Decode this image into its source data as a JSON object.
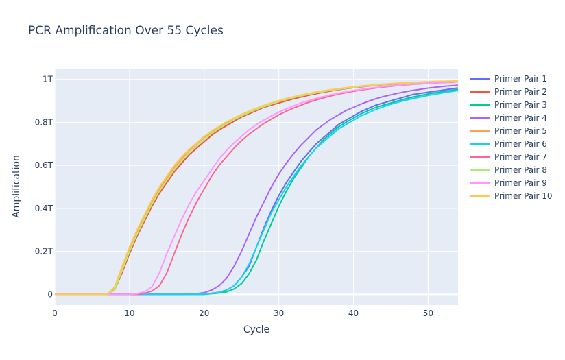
{
  "chart_data": {
    "type": "line",
    "title": "PCR Amplification Over 55 Cycles",
    "xlabel": "Cycle",
    "ylabel": "Amplification",
    "xlim": [
      0,
      54
    ],
    "ylim": [
      -0.05,
      1.05
    ],
    "y_unit": "trillions",
    "x_ticks": [
      0,
      10,
      20,
      30,
      40,
      50
    ],
    "x_tick_labels": [
      "0",
      "10",
      "20",
      "30",
      "40",
      "50"
    ],
    "y_ticks": [
      0,
      0.2,
      0.4,
      0.6,
      0.8,
      1.0
    ],
    "y_tick_labels": [
      "0",
      "0.2T",
      "0.4T",
      "0.6T",
      "0.8T",
      "1T"
    ],
    "grid": true,
    "legend_position": "right",
    "x": [
      0,
      1,
      2,
      3,
      4,
      5,
      6,
      7,
      8,
      9,
      10,
      11,
      12,
      13,
      14,
      15,
      16,
      17,
      18,
      19,
      20,
      21,
      22,
      23,
      24,
      25,
      26,
      27,
      28,
      29,
      30,
      31,
      32,
      33,
      34,
      35,
      36,
      37,
      38,
      39,
      40,
      41,
      42,
      43,
      44,
      45,
      46,
      47,
      48,
      49,
      50,
      51,
      52,
      53,
      54
    ],
    "series": [
      {
        "name": "Primer Pair 1",
        "color": "#636efa",
        "values": [
          0,
          0,
          0,
          0,
          0,
          0,
          0,
          0,
          0,
          0,
          0,
          0,
          0,
          0,
          0,
          0,
          0,
          0,
          0,
          0,
          0,
          0.005,
          0.01,
          0.02,
          0.04,
          0.08,
          0.13,
          0.22,
          0.31,
          0.39,
          0.46,
          0.52,
          0.57,
          0.62,
          0.66,
          0.7,
          0.73,
          0.76,
          0.79,
          0.81,
          0.83,
          0.85,
          0.865,
          0.88,
          0.89,
          0.9,
          0.91,
          0.92,
          0.93,
          0.935,
          0.94,
          0.945,
          0.95,
          0.955,
          0.96
        ]
      },
      {
        "name": "Primer Pair 2",
        "color": "#ef553b",
        "values": [
          0,
          0,
          0,
          0,
          0,
          0,
          0,
          0,
          0.02,
          0.1,
          0.19,
          0.27,
          0.34,
          0.41,
          0.47,
          0.52,
          0.57,
          0.61,
          0.65,
          0.68,
          0.71,
          0.74,
          0.765,
          0.785,
          0.805,
          0.825,
          0.84,
          0.855,
          0.87,
          0.88,
          0.89,
          0.9,
          0.91,
          0.918,
          0.926,
          0.933,
          0.94,
          0.946,
          0.952,
          0.957,
          0.961,
          0.965,
          0.969,
          0.972,
          0.975,
          0.977,
          0.979,
          0.981,
          0.983,
          0.985,
          0.986,
          0.987,
          0.988,
          0.989,
          0.99
        ]
      },
      {
        "name": "Primer Pair 3",
        "color": "#00cc96",
        "values": [
          0,
          0,
          0,
          0,
          0,
          0,
          0,
          0,
          0,
          0,
          0,
          0,
          0,
          0,
          0,
          0,
          0,
          0,
          0,
          0,
          0,
          0.003,
          0.006,
          0.012,
          0.025,
          0.05,
          0.095,
          0.16,
          0.25,
          0.33,
          0.41,
          0.48,
          0.54,
          0.59,
          0.64,
          0.68,
          0.72,
          0.75,
          0.78,
          0.8,
          0.82,
          0.84,
          0.855,
          0.87,
          0.88,
          0.89,
          0.9,
          0.91,
          0.918,
          0.925,
          0.932,
          0.938,
          0.943,
          0.948,
          0.953
        ]
      },
      {
        "name": "Primer Pair 4",
        "color": "#ab63fa",
        "values": [
          0,
          0,
          0,
          0,
          0,
          0,
          0,
          0,
          0,
          0,
          0,
          0,
          0,
          0,
          0,
          0,
          0,
          0,
          0,
          0.003,
          0.008,
          0.02,
          0.04,
          0.075,
          0.13,
          0.2,
          0.28,
          0.36,
          0.43,
          0.5,
          0.56,
          0.61,
          0.655,
          0.695,
          0.73,
          0.765,
          0.79,
          0.815,
          0.835,
          0.855,
          0.87,
          0.885,
          0.898,
          0.91,
          0.92,
          0.928,
          0.936,
          0.943,
          0.949,
          0.954,
          0.959,
          0.963,
          0.967,
          0.97,
          0.973
        ]
      },
      {
        "name": "Primer Pair 5",
        "color": "#ffa15a",
        "values": [
          0,
          0,
          0,
          0,
          0,
          0,
          0,
          0,
          0.03,
          0.12,
          0.21,
          0.29,
          0.36,
          0.43,
          0.49,
          0.54,
          0.59,
          0.63,
          0.67,
          0.7,
          0.73,
          0.755,
          0.778,
          0.798,
          0.818,
          0.835,
          0.85,
          0.864,
          0.877,
          0.889,
          0.9,
          0.909,
          0.918,
          0.926,
          0.933,
          0.94,
          0.946,
          0.951,
          0.956,
          0.96,
          0.964,
          0.968,
          0.971,
          0.974,
          0.977,
          0.979,
          0.981,
          0.983,
          0.985,
          0.987,
          0.988,
          0.989,
          0.99,
          0.991,
          0.992
        ]
      },
      {
        "name": "Primer Pair 6",
        "color": "#19d3f3",
        "values": [
          0,
          0,
          0,
          0,
          0,
          0,
          0,
          0,
          0,
          0,
          0,
          0,
          0,
          0,
          0,
          0,
          0,
          0,
          0,
          0,
          0.002,
          0.004,
          0.01,
          0.02,
          0.04,
          0.08,
          0.14,
          0.22,
          0.3,
          0.38,
          0.44,
          0.5,
          0.55,
          0.6,
          0.64,
          0.68,
          0.71,
          0.74,
          0.77,
          0.79,
          0.81,
          0.83,
          0.845,
          0.86,
          0.872,
          0.884,
          0.894,
          0.903,
          0.911,
          0.918,
          0.925,
          0.931,
          0.937,
          0.943,
          0.948
        ]
      },
      {
        "name": "Primer Pair 7",
        "color": "#ff6692",
        "values": [
          0,
          0,
          0,
          0,
          0,
          0,
          0,
          0,
          0,
          0,
          0,
          0,
          0.005,
          0.015,
          0.04,
          0.1,
          0.19,
          0.28,
          0.36,
          0.43,
          0.49,
          0.55,
          0.6,
          0.64,
          0.68,
          0.715,
          0.745,
          0.77,
          0.795,
          0.815,
          0.835,
          0.852,
          0.867,
          0.88,
          0.893,
          0.904,
          0.914,
          0.923,
          0.931,
          0.938,
          0.944,
          0.95,
          0.955,
          0.96,
          0.964,
          0.968,
          0.971,
          0.974,
          0.977,
          0.979,
          0.981,
          0.983,
          0.985,
          0.986,
          0.988
        ]
      },
      {
        "name": "Primer Pair 8",
        "color": "#b6e880",
        "values": [
          0,
          0,
          0,
          0,
          0,
          0,
          0,
          0,
          0.02,
          0.11,
          0.2,
          0.28,
          0.35,
          0.42,
          0.48,
          0.53,
          0.58,
          0.62,
          0.66,
          0.69,
          0.72,
          0.748,
          0.772,
          0.792,
          0.812,
          0.83,
          0.845,
          0.86,
          0.873,
          0.885,
          0.896,
          0.906,
          0.915,
          0.923,
          0.93,
          0.937,
          0.943,
          0.949,
          0.954,
          0.958,
          0.962,
          0.966,
          0.97,
          0.973,
          0.976,
          0.978,
          0.98,
          0.982,
          0.984,
          0.986,
          0.987,
          0.988,
          0.989,
          0.99,
          0.991
        ]
      },
      {
        "name": "Primer Pair 9",
        "color": "#ff97ff",
        "values": [
          0,
          0,
          0,
          0,
          0,
          0,
          0,
          0,
          0,
          0,
          0,
          0.003,
          0.012,
          0.035,
          0.1,
          0.19,
          0.27,
          0.35,
          0.42,
          0.48,
          0.53,
          0.58,
          0.63,
          0.67,
          0.705,
          0.735,
          0.765,
          0.79,
          0.81,
          0.83,
          0.848,
          0.863,
          0.877,
          0.89,
          0.901,
          0.911,
          0.92,
          0.928,
          0.935,
          0.942,
          0.948,
          0.953,
          0.958,
          0.962,
          0.966,
          0.97,
          0.973,
          0.976,
          0.978,
          0.98,
          0.982,
          0.984,
          0.986,
          0.987,
          0.988
        ]
      },
      {
        "name": "Primer Pair 10",
        "color": "#fecb52",
        "values": [
          0,
          0,
          0,
          0,
          0,
          0,
          0,
          0,
          0.035,
          0.13,
          0.22,
          0.3,
          0.37,
          0.44,
          0.5,
          0.55,
          0.6,
          0.64,
          0.675,
          0.705,
          0.735,
          0.76,
          0.782,
          0.802,
          0.82,
          0.837,
          0.852,
          0.866,
          0.879,
          0.891,
          0.901,
          0.911,
          0.919,
          0.927,
          0.934,
          0.941,
          0.947,
          0.952,
          0.957,
          0.961,
          0.965,
          0.969,
          0.972,
          0.975,
          0.978,
          0.98,
          0.982,
          0.984,
          0.986,
          0.987,
          0.989,
          0.99,
          0.991,
          0.992,
          0.993
        ]
      }
    ]
  }
}
